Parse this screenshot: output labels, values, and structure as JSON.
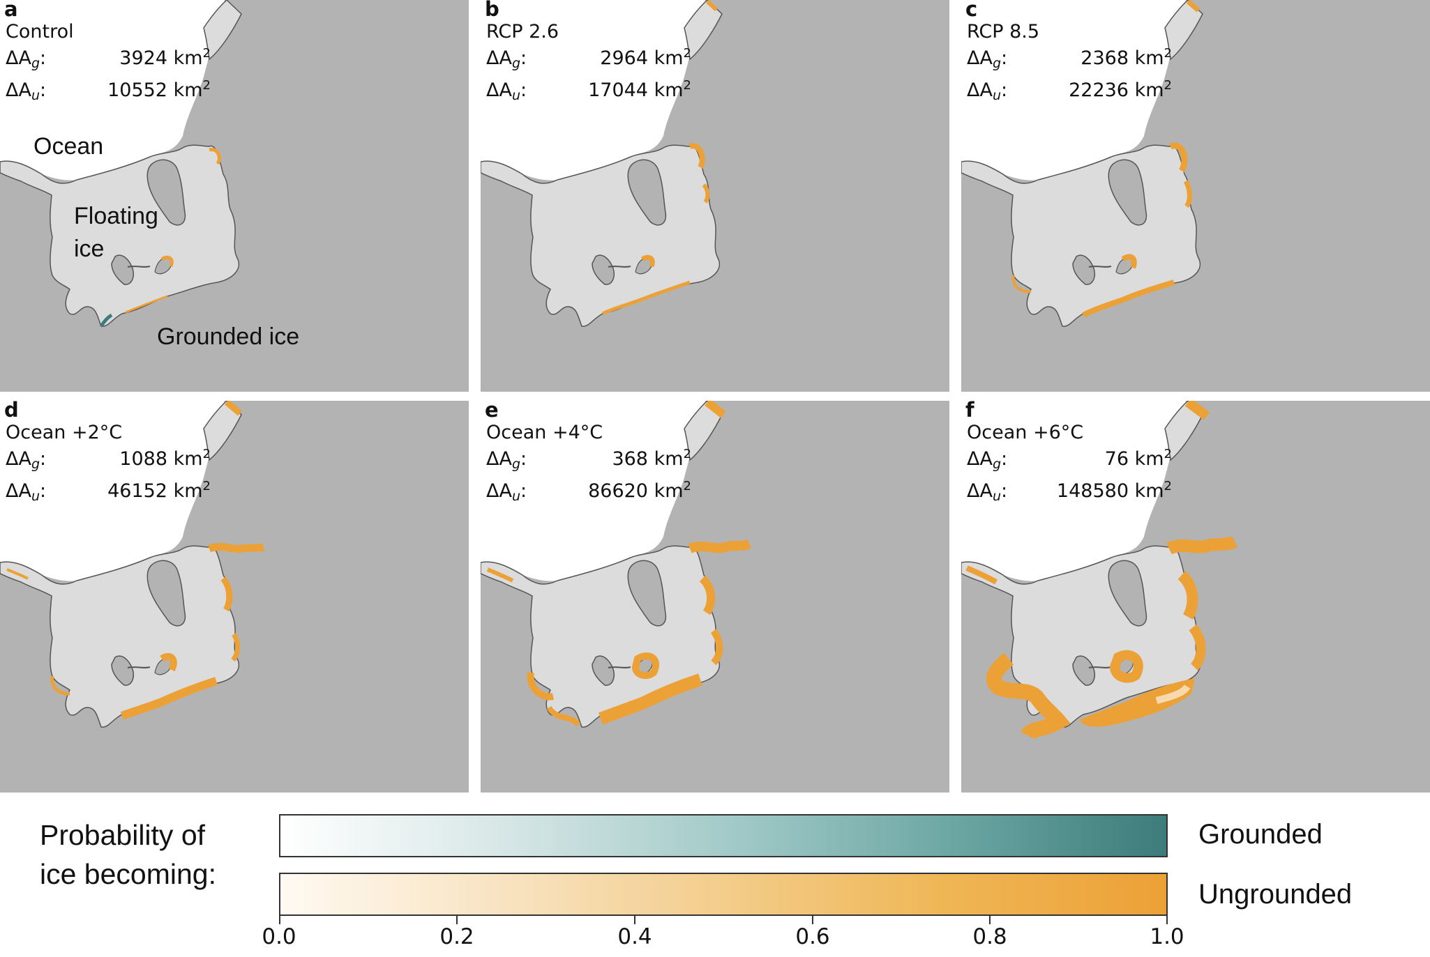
{
  "colors": {
    "grounded_land": "#b3b3b3",
    "floating_ice": "#dcdcdc",
    "ocean": "#ffffff",
    "grounded_prob": "#3c7c7a",
    "ungrounded_prob": "#eca136"
  },
  "panels": [
    {
      "letter": "a",
      "scenario": "Control",
      "dAg_symbol": "ΔA",
      "dAg_sub": "g",
      "dAg_value": "3924",
      "dAu_symbol": "ΔA",
      "dAu_sub": "u",
      "dAu_value": "10552",
      "unit": "km",
      "unit_exp": "2",
      "ungrounded_level": 0.05
    },
    {
      "letter": "b",
      "scenario": "RCP 2.6",
      "dAg_symbol": "ΔA",
      "dAg_sub": "g",
      "dAg_value": "2964",
      "dAu_symbol": "ΔA",
      "dAu_sub": "u",
      "dAu_value": "17044",
      "unit": "km",
      "unit_exp": "2",
      "ungrounded_level": 0.1
    },
    {
      "letter": "c",
      "scenario": "RCP 8.5",
      "dAg_symbol": "ΔA",
      "dAg_sub": "g",
      "dAg_value": "2368",
      "dAu_symbol": "ΔA",
      "dAu_sub": "u",
      "dAu_value": "22236",
      "unit": "km",
      "unit_exp": "2",
      "ungrounded_level": 0.15
    },
    {
      "letter": "d",
      "scenario": "Ocean +2°C",
      "dAg_symbol": "ΔA",
      "dAg_sub": "g",
      "dAg_value": "1088",
      "dAu_symbol": "ΔA",
      "dAu_sub": "u",
      "dAu_value": "46152",
      "unit": "km",
      "unit_exp": "2",
      "ungrounded_level": 0.3
    },
    {
      "letter": "e",
      "scenario": "Ocean +4°C",
      "dAg_symbol": "ΔA",
      "dAg_sub": "g",
      "dAg_value": "368",
      "dAu_symbol": "ΔA",
      "dAu_sub": "u",
      "dAu_value": "86620",
      "unit": "km",
      "unit_exp": "2",
      "ungrounded_level": 0.55
    },
    {
      "letter": "f",
      "scenario": "Ocean +6°C",
      "dAg_symbol": "ΔA",
      "dAg_sub": "g",
      "dAg_value": "76",
      "dAu_symbol": "ΔA",
      "dAu_sub": "u",
      "dAu_value": "148580",
      "unit": "km",
      "unit_exp": "2",
      "ungrounded_level": 0.9
    }
  ],
  "region_labels": {
    "ocean": "Ocean",
    "floating_line1": "Floating",
    "floating_line2": "ice",
    "grounded": "Grounded ice"
  },
  "legend": {
    "title_line1": "Probability of",
    "title_line2": "ice becoming:",
    "grounded_label": "Grounded",
    "ungrounded_label": "Ungrounded",
    "ticks": [
      "0.0",
      "0.2",
      "0.4",
      "0.6",
      "0.8",
      "1.0"
    ]
  }
}
